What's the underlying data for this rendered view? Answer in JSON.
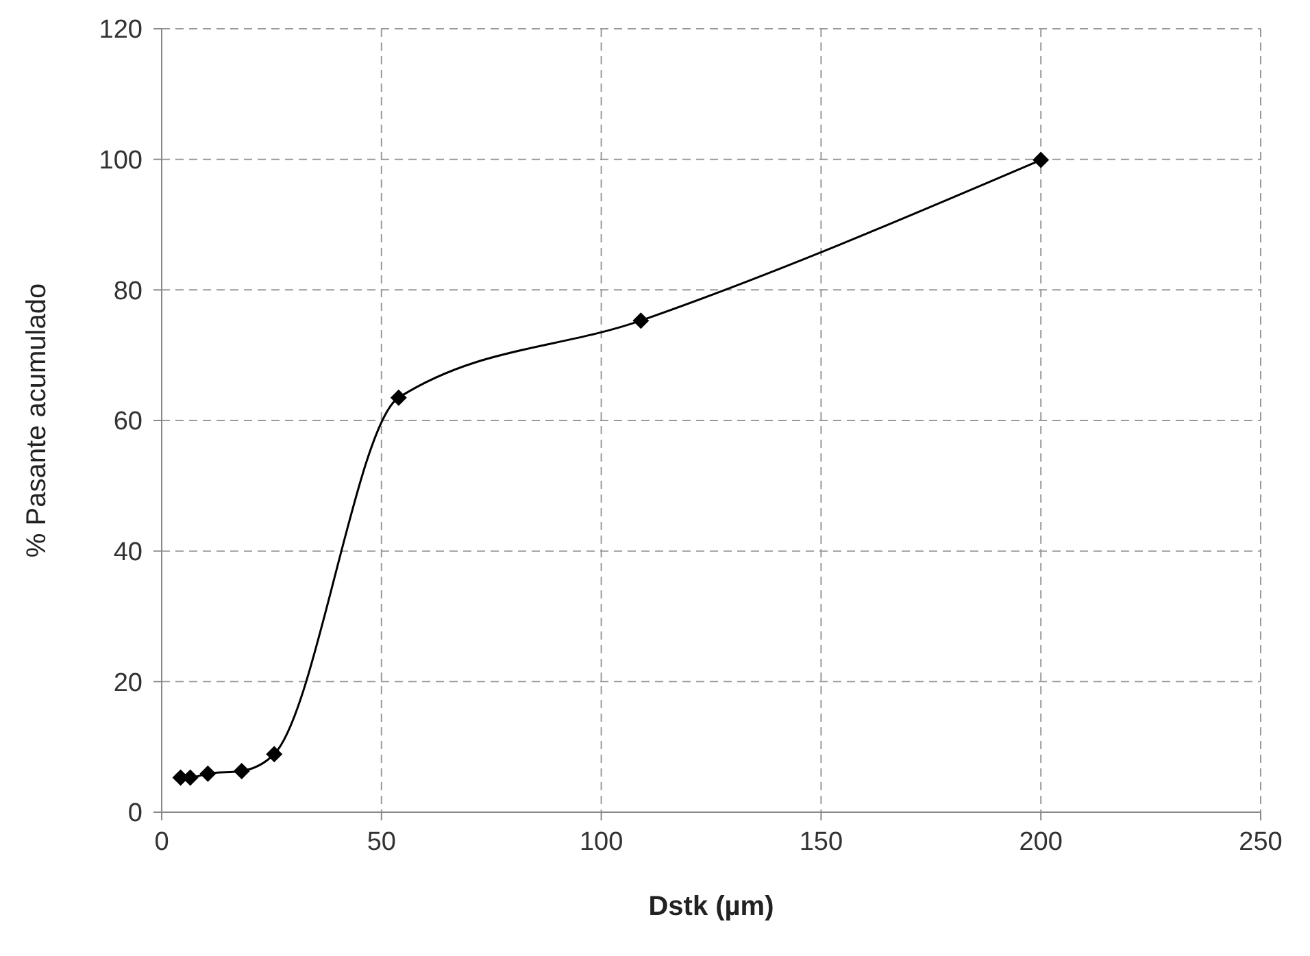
{
  "chart_data": {
    "type": "line",
    "xlabel": "Dstk (µm)",
    "ylabel": "% Pasante acumulado",
    "x": [
      4.3,
      6.5,
      10.5,
      18.2,
      25.6,
      53.9,
      109,
      200
    ],
    "series": [
      {
        "color": "#000000",
        "values": [
          5.3,
          5.3,
          5.9,
          6.3,
          8.9,
          63.5,
          75.3,
          99.9
        ]
      }
    ],
    "xlim": [
      0,
      250
    ],
    "xticks": [
      0,
      50,
      100,
      150,
      200,
      250
    ],
    "ylim": [
      0,
      120
    ],
    "yticks": [
      0,
      20,
      40,
      60,
      80,
      100,
      120
    ],
    "grid": true,
    "legend": false,
    "marker": "diamond",
    "line_style": "solid"
  }
}
